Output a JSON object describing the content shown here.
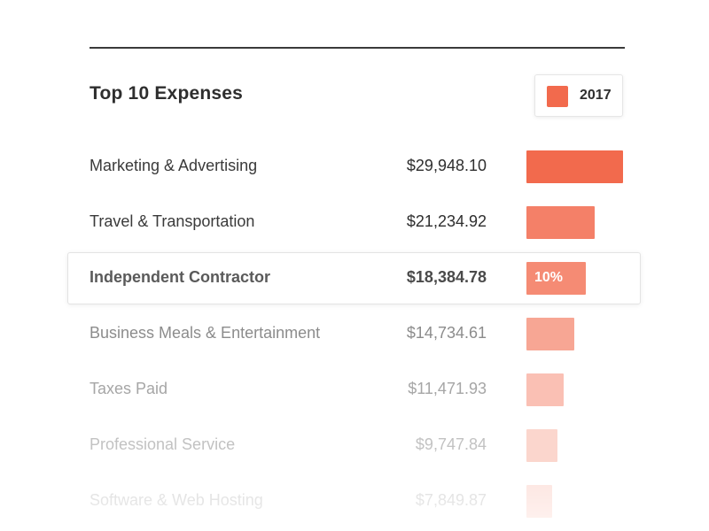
{
  "title": "Top 10 Expenses",
  "legend": {
    "label": "2017",
    "color": "#f26a4d"
  },
  "highlight_index": 2,
  "chart_data": {
    "type": "bar",
    "title": "Top 10 Expenses",
    "orientation": "horizontal",
    "series": [
      {
        "name": "2017",
        "values": [
          29948.1,
          21234.92,
          18384.78,
          14734.61,
          11471.93,
          9747.84,
          7849.87
        ]
      }
    ],
    "categories": [
      "Marketing & Advertising",
      "Travel & Transportation",
      "Independent Contractor",
      "Business Meals & Entertainment",
      "Taxes Paid",
      "Professional Service",
      "Software & Web Hosting"
    ],
    "value_labels": [
      "$29,948.10",
      "$21,234.92",
      "$18,384.78",
      "$14,734.61",
      "$11,471.93",
      "$9,747.84",
      "$7,849.87"
    ],
    "bar_annotations": [
      "",
      "",
      "10%",
      "",
      "",
      "",
      ""
    ],
    "legend": "top-right",
    "grid": false
  }
}
